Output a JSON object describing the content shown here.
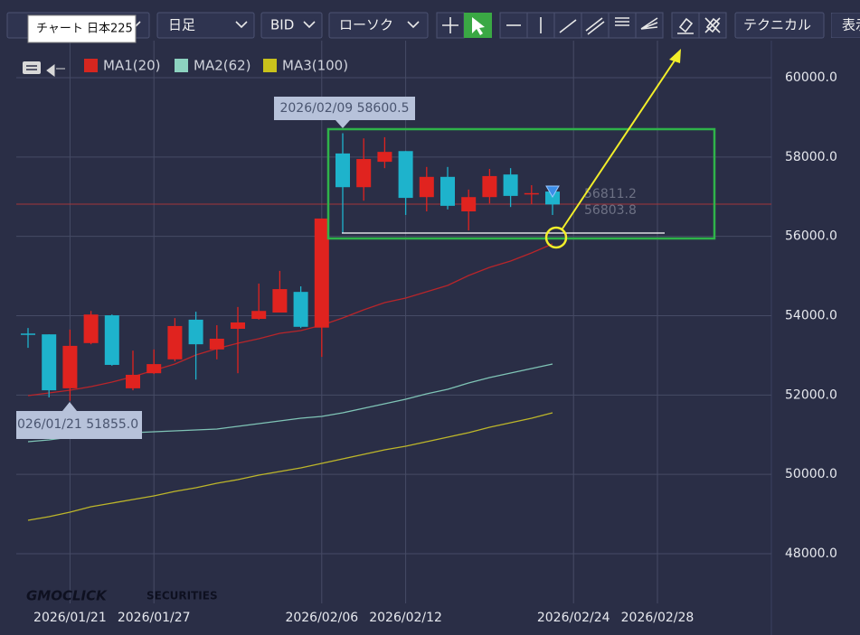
{
  "toolbar": {
    "tooltip": "チャート 日本225",
    "period": "日足",
    "price_type": "BID",
    "chart_style": "ローソク",
    "technical": "テクニカル",
    "display": "表示"
  },
  "watermark": {
    "brand": "GMOCLICK",
    "suffix": "SECURITIES"
  },
  "chart_data": {
    "type": "candlestick",
    "categories": [
      null,
      null,
      "2026/01/21",
      null,
      null,
      null,
      "2026/01/27",
      null,
      null,
      null,
      null,
      null,
      null,
      null,
      "2026/02/06",
      null,
      null,
      null,
      "2026/02/12",
      null,
      null,
      null,
      null,
      null,
      null,
      null,
      "2026/02/24",
      null,
      null,
      null,
      "2026/02/28"
    ],
    "open": [
      53550,
      53530,
      52170,
      53310,
      54010,
      52170,
      52550,
      52900,
      53900,
      53150,
      53670,
      53920,
      54080,
      54600,
      53700,
      58090,
      57240,
      57880,
      58150,
      56990,
      57500,
      56630,
      56990,
      57560,
      57060,
      57130,
      null,
      null,
      null,
      null,
      null
    ],
    "high": [
      53690,
      53530,
      53650,
      54120,
      54030,
      53120,
      53150,
      53940,
      54100,
      53760,
      54220,
      54810,
      55130,
      54740,
      56450,
      58600.5,
      58470,
      58500,
      58150,
      57750,
      57750,
      57180,
      57700,
      57720,
      57290,
      57180,
      null,
      null,
      null,
      null,
      null
    ],
    "low": [
      53190,
      51940,
      51855,
      53280,
      52740,
      52120,
      52530,
      52850,
      52390,
      52900,
      52550,
      53900,
      54080,
      53690,
      52960,
      56080,
      56900,
      57720,
      56540,
      56630,
      56680,
      56150,
      56830,
      56740,
      56810,
      56540,
      null,
      null,
      null,
      null,
      null
    ],
    "close": [
      53520,
      52120,
      53240,
      54030,
      52760,
      52510,
      52780,
      53740,
      53280,
      53420,
      53830,
      54120,
      54670,
      53720,
      56450,
      57240,
      57950,
      58130,
      56970,
      57500,
      56770,
      56990,
      57520,
      57020,
      57090,
      56803.8,
      null,
      null,
      null,
      null,
      null
    ],
    "up_color": "#e0231f",
    "down_color": "#1eb3cc",
    "series": [
      {
        "name": "MA1(20)",
        "color": "#d6261f",
        "line_color": "#b8252a",
        "values": [
          51985,
          52053,
          52122,
          52213,
          52326,
          52463,
          52623,
          52782,
          53010,
          53169,
          53306,
          53420,
          53556,
          53624,
          53761,
          53943,
          54148,
          54330,
          54444,
          54604,
          54763,
          55013,
          55218,
          55378,
          55583,
          55810,
          null,
          null,
          null,
          null,
          null
        ]
      },
      {
        "name": "MA2(62)",
        "color": "#8dd3c0",
        "line_color": "#7fc4b6",
        "values": [
          50824,
          50869,
          50937,
          51006,
          51051,
          51051,
          51074,
          51097,
          51120,
          51143,
          51211,
          51279,
          51347,
          51416,
          51461,
          51552,
          51666,
          51780,
          51894,
          52031,
          52144,
          52304,
          52440,
          52554,
          52668,
          52782,
          null,
          null,
          null,
          null,
          null
        ]
      },
      {
        "name": "MA3(100)",
        "color": "#c9c21c",
        "line_color": "#bdb62a",
        "values": [
          48842,
          48934,
          49048,
          49184,
          49275,
          49366,
          49457,
          49571,
          49662,
          49776,
          49867,
          49981,
          50072,
          50163,
          50277,
          50391,
          50505,
          50619,
          50710,
          50824,
          50938,
          51052,
          51189,
          51302,
          51416,
          51553,
          null,
          null,
          null,
          null,
          null
        ]
      }
    ],
    "ylim": [
      46930,
      60934
    ],
    "yticks": [
      {
        "value": 48000,
        "label": "48000.0"
      },
      {
        "value": 50000,
        "label": "50000.0"
      },
      {
        "value": 52000,
        "label": "52000.0"
      },
      {
        "value": 54000,
        "label": "54000.0"
      },
      {
        "value": 56000,
        "label": "56000.0"
      },
      {
        "value": 58000,
        "label": "58000.0"
      },
      {
        "value": 60000,
        "label": "60000.0"
      }
    ],
    "grid": true,
    "price_labels": [
      56811.2,
      56803.8
    ],
    "annotations": [
      "2026/02/09 58600.5",
      "026/01/21 51855.0"
    ]
  }
}
